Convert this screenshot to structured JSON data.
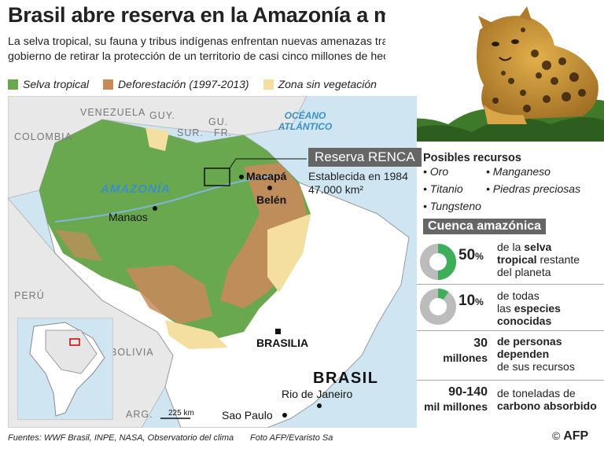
{
  "title": "Brasil abre reserva en la Amazonía a minería",
  "subtitle": "La selva tropical, su fauna y tribus indígenas enfrentan nuevas amenazas tras la decisión del gobierno de retirar la protección de un territorio de casi cinco millones de hectáreas",
  "legend": [
    {
      "label": "Selva tropical",
      "color": "#6aa84f"
    },
    {
      "label": "Deforestación (1997-2013)",
      "color": "#c98a5a"
    },
    {
      "label": "Zona sin vegetación",
      "color": "#f5dfa0"
    }
  ],
  "map": {
    "countries": [
      "COLOMBIA",
      "VENEZUELA",
      "GUY.",
      "SUR.",
      "GU.",
      "FR.",
      "PERÚ",
      "BOLIVIA",
      "ARG."
    ],
    "ocean": "OCÉANO ATLÁNTICO",
    "region": "AMAZONÍA",
    "country_main": "BRASIL",
    "cities": [
      "Macapá",
      "Belén",
      "Manaos",
      "BRASILIA",
      "Rio de Janeiro",
      "Sao Paulo"
    ],
    "scale": "225 km",
    "colors": {
      "forest": "#6aa84f",
      "deforest": "#c98a5a",
      "bare": "#f5dfa0",
      "land": "#ffffff",
      "neighbor": "#e8e8e8",
      "sea": "#cfe6f2"
    }
  },
  "reserva": {
    "name": "Reserva RENCA",
    "established": "Establecida en 1984",
    "area": "47.000 km²"
  },
  "recursos": {
    "title": "Posibles recursos",
    "items": [
      "Oro",
      "Manganeso",
      "Titanio",
      "Piedras preciosas",
      "Tungsteno"
    ]
  },
  "cuenca": {
    "title": "Cuenca amazónica",
    "stats": [
      {
        "value": "50",
        "unit": "%",
        "fraction": 0.5,
        "text_1": "de la",
        "bold_1": "selva",
        "bold_2": "tropical",
        "text_2": "restante",
        "text_3": "del planeta"
      },
      {
        "value": "10",
        "unit": "%",
        "fraction": 0.1,
        "text_1": "de todas",
        "text_2": "las",
        "bold_1": "especies",
        "bold_2": "conocidas"
      },
      {
        "value": "30",
        "unit": "millones",
        "line1": "de personas",
        "line2": "dependen",
        "line3": "de sus recursos"
      },
      {
        "value": "90-140",
        "unit": "mil millones",
        "line1": "de toneladas de",
        "line2": "carbono absorbido"
      }
    ]
  },
  "footer": {
    "sources": "Fuentes: WWF Brasil, INPE, NASA, Observatorio del clima",
    "photo": "Foto AFP/Evaristo Sa",
    "agency": "AFP",
    "copyright": "©"
  }
}
